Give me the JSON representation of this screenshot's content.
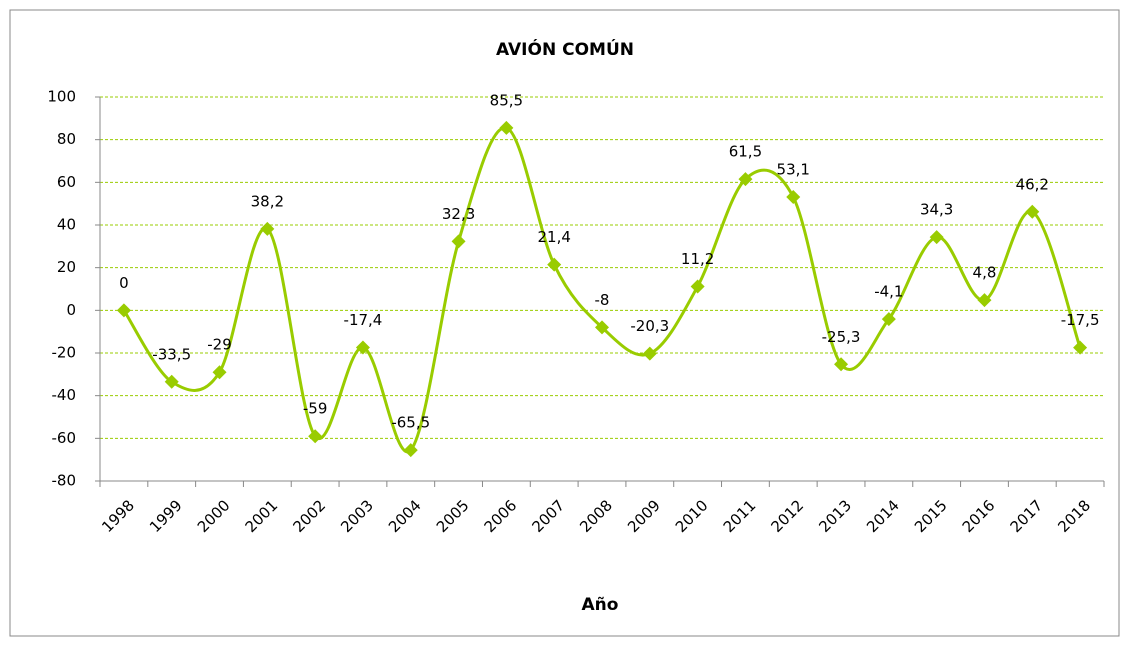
{
  "chart_data": {
    "type": "line",
    "title": "AVIÓN COMÚN",
    "x_label": "Año",
    "categories": [
      "1998",
      "1999",
      "2000",
      "2001",
      "2002",
      "2003",
      "2004",
      "2005",
      "2006",
      "2007",
      "2008",
      "2009",
      "2010",
      "2011",
      "2012",
      "2013",
      "2014",
      "2015",
      "2016",
      "2017",
      "2018"
    ],
    "series": [
      {
        "name": "AVIÓN COMÚN",
        "color": "#99cc00",
        "values": [
          0,
          -33.5,
          -29,
          38.2,
          -59,
          -17.4,
          -65.5,
          32.3,
          85.5,
          21.4,
          -8,
          -20.3,
          11.2,
          61.5,
          53.1,
          -25.3,
          -4.1,
          34.3,
          4.8,
          46.2,
          -17.5
        ],
        "value_labels": [
          "0",
          "-33,5",
          "-29",
          "38,2",
          "-59",
          "-17,4",
          "-65,5",
          "32,3",
          "85,5",
          "21,4",
          "-8",
          "-20,3",
          "11,2",
          "61,5",
          "53,1",
          "-25,3",
          "-4,1",
          "34,3",
          "4,8",
          "46,2",
          "-17,5"
        ]
      }
    ],
    "ylim": [
      -80,
      100
    ],
    "yticks": [
      -80,
      -60,
      -40,
      -20,
      0,
      20,
      40,
      60,
      80,
      100
    ],
    "grid": true,
    "smooth": true
  }
}
